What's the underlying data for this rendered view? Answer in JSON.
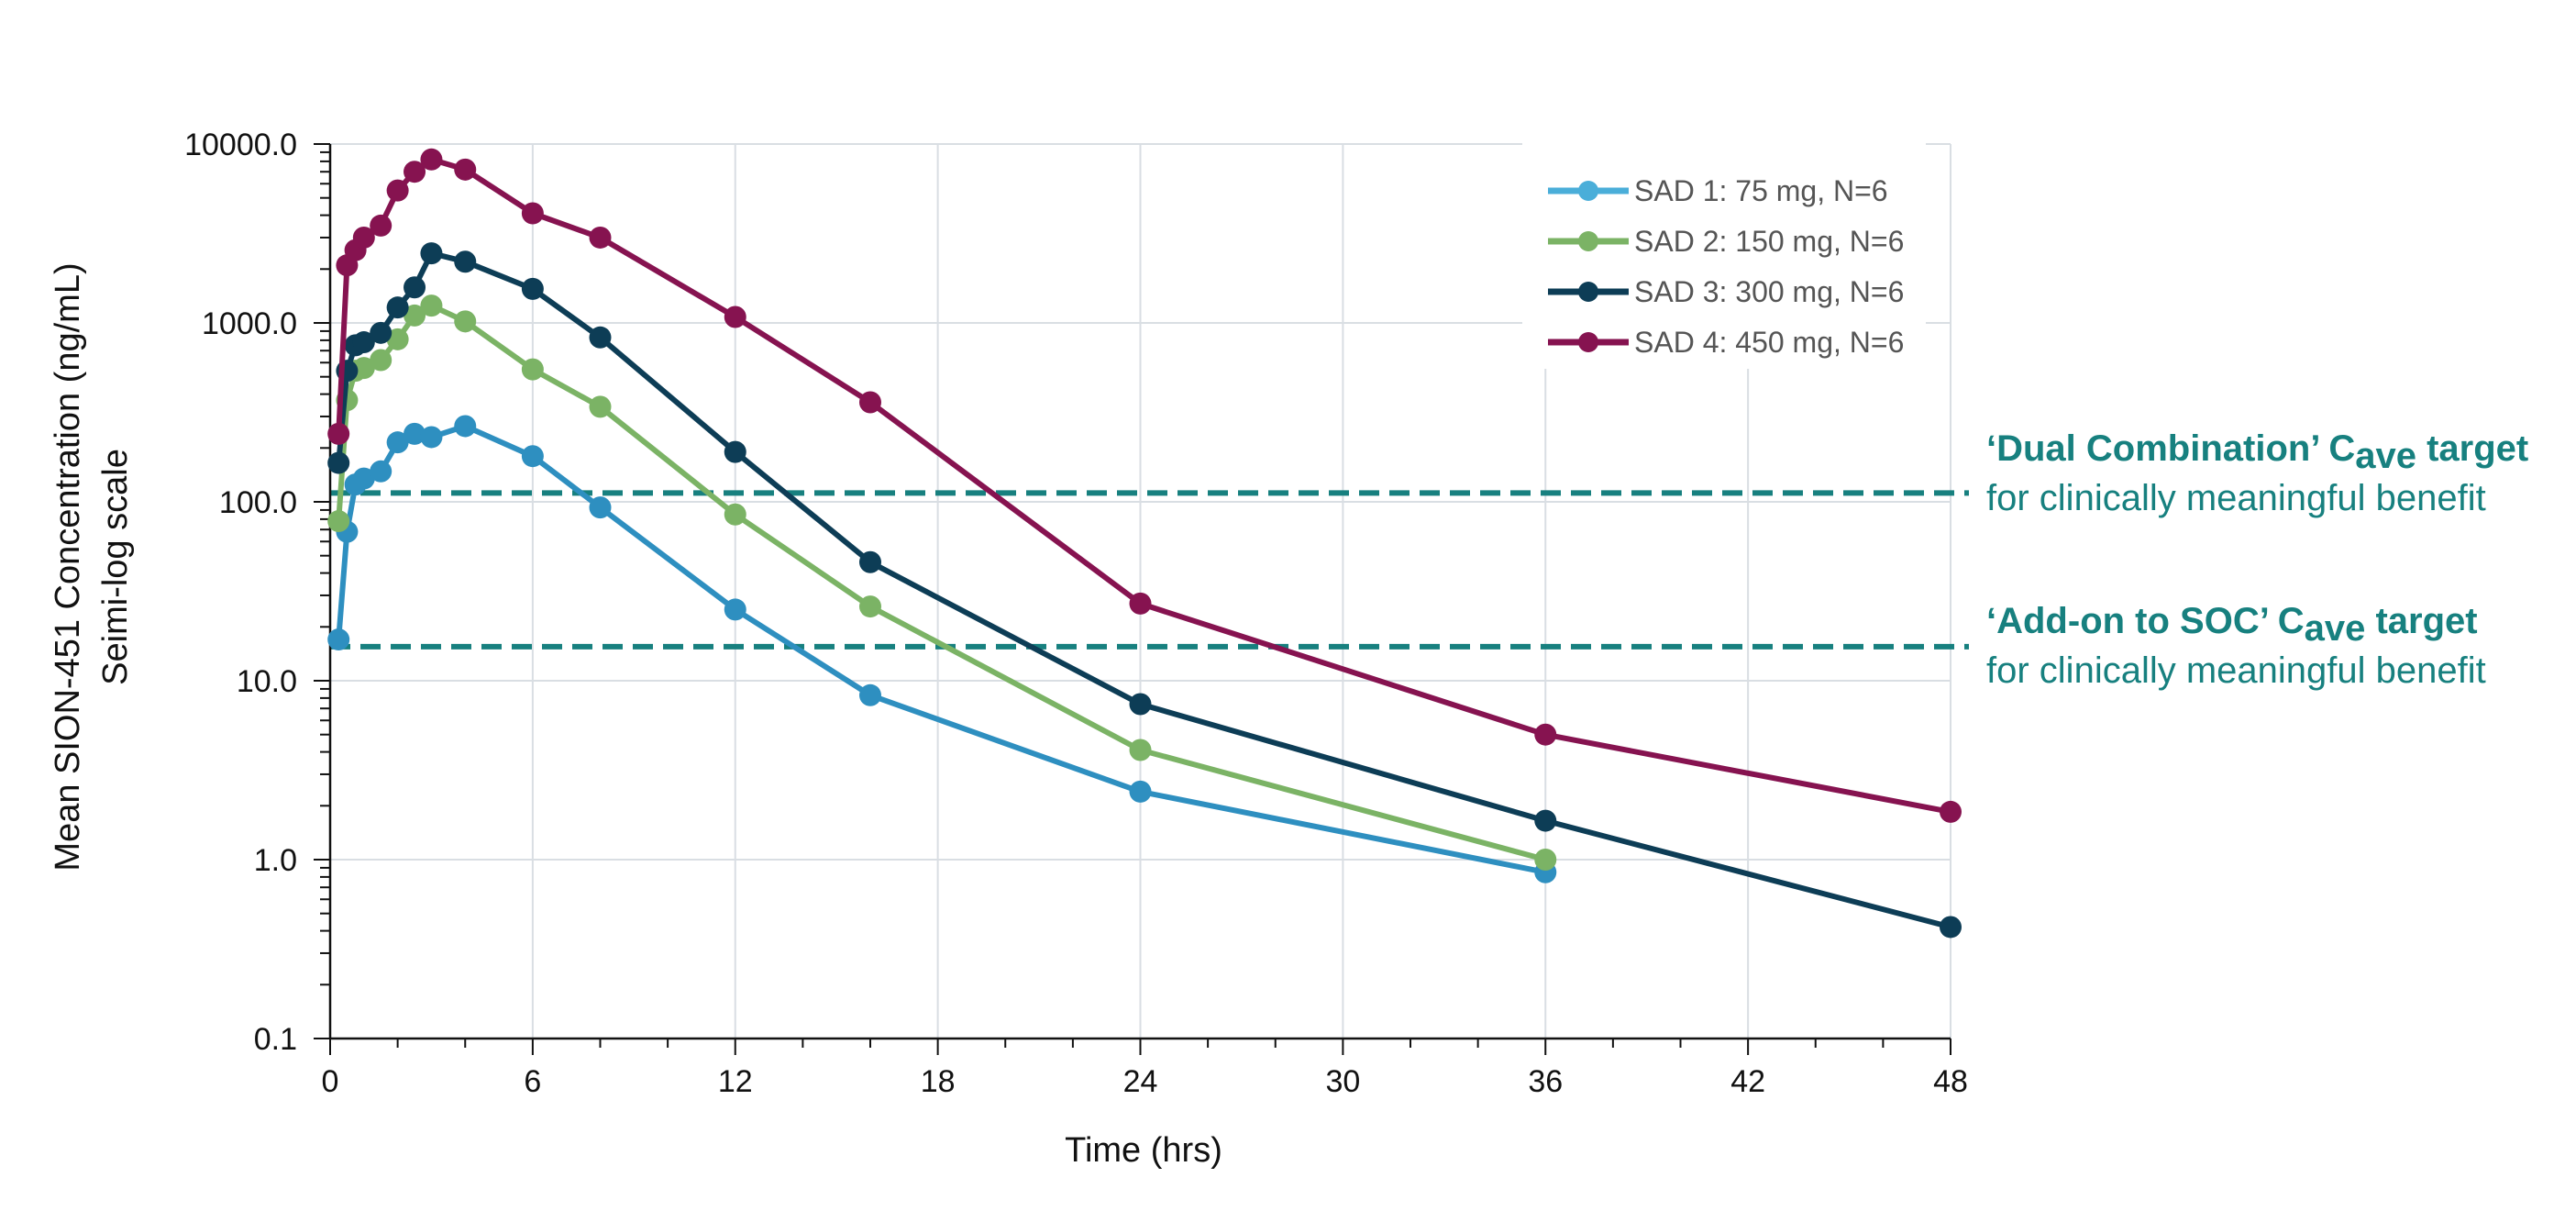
{
  "chart_data": {
    "type": "line",
    "yscale": "log",
    "xlabel": "Time (hrs)",
    "ylabel": "Mean SION-451 Concentration (ng/mL)",
    "ylabel_sub": "Seimi-log scale",
    "xlim": [
      0,
      48
    ],
    "ylim": [
      0.1,
      10000
    ],
    "x_ticks": [
      0,
      6,
      12,
      18,
      24,
      30,
      36,
      42,
      48
    ],
    "x_tick_labels": [
      "0",
      "6",
      "12",
      "18",
      "24",
      "30",
      "36",
      "42",
      "48"
    ],
    "y_ticks": [
      0.1,
      1,
      10,
      100,
      1000,
      10000
    ],
    "y_tick_labels": [
      "0.1",
      "1.0",
      "10.0",
      "100.0",
      "1000.0",
      "10000.0"
    ],
    "grid": true,
    "legend_position": "top-right",
    "series": [
      {
        "name": "SAD 1: 75 mg, N=6",
        "color": "#2e8fc0",
        "legend_color": "#4aaed9",
        "x": [
          0.25,
          0.5,
          0.75,
          1,
          1.5,
          2,
          2.5,
          3,
          4,
          6,
          8,
          12,
          16,
          24,
          36
        ],
        "y": [
          17,
          68,
          125,
          135,
          148,
          215,
          240,
          230,
          265,
          180,
          93,
          25,
          8.3,
          2.4,
          0.85
        ]
      },
      {
        "name": "SAD 2: 150 mg, N=6",
        "color": "#7bb365",
        "legend_color": "#7bb365",
        "x": [
          0.25,
          0.5,
          0.75,
          1,
          1.5,
          2,
          2.5,
          3,
          4,
          6,
          8,
          12,
          16,
          24,
          36
        ],
        "y": [
          78,
          370,
          540,
          560,
          620,
          810,
          1100,
          1250,
          1020,
          550,
          340,
          85,
          26,
          4.1,
          1.0
        ]
      },
      {
        "name": "SAD 3: 300 mg, N=6",
        "color": "#0d3d56",
        "legend_color": "#0d3d56",
        "x": [
          0.25,
          0.5,
          0.75,
          1,
          1.5,
          2,
          2.5,
          3,
          4,
          6,
          8,
          12,
          16,
          24,
          36,
          48
        ],
        "y": [
          165,
          540,
          750,
          780,
          880,
          1220,
          1580,
          2450,
          2200,
          1550,
          830,
          190,
          46,
          7.4,
          1.65,
          0.42
        ]
      },
      {
        "name": "SAD 4: 450 mg, N=6",
        "color": "#861350",
        "legend_color": "#861350",
        "x": [
          0.25,
          0.5,
          0.75,
          1,
          1.5,
          2,
          2.5,
          3,
          4,
          6,
          8,
          12,
          16,
          24,
          36,
          48
        ],
        "y": [
          240,
          2100,
          2550,
          3000,
          3500,
          5500,
          7000,
          8200,
          7200,
          4100,
          3000,
          1080,
          360,
          27,
          5.0,
          1.85
        ]
      }
    ],
    "reference_lines": [
      {
        "y": 112,
        "color": "#17807f",
        "label_bold_pre": "‘Dual Combination’ C",
        "label_sub": "ave",
        "label_bold_post": " target",
        "label_line2": "for clinically meaningful benefit"
      },
      {
        "y": 15.5,
        "color": "#17807f",
        "label_bold_pre": "‘Add-on to SOC’ C",
        "label_sub": "ave",
        "label_bold_post": " target",
        "label_line2": "for clinically meaningful benefit"
      }
    ]
  }
}
